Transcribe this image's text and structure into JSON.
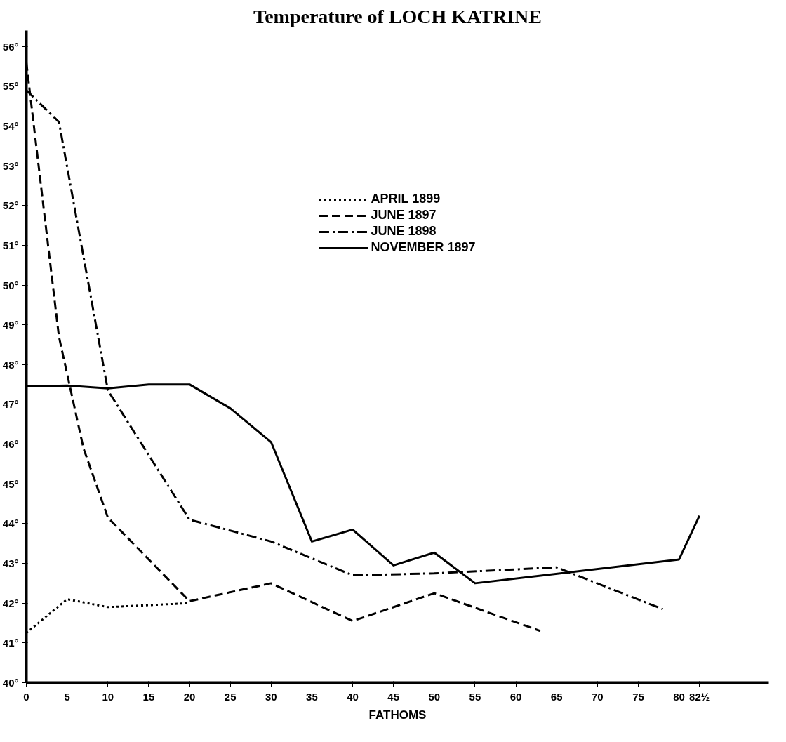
{
  "chart_data": {
    "type": "line",
    "title": "Temperature of LOCH KATRINE",
    "xlabel": "FATHOMS",
    "xlim": [
      0,
      91
    ],
    "ylim": [
      40,
      56.4
    ],
    "xticks": [
      0,
      5,
      10,
      15,
      20,
      25,
      30,
      35,
      40,
      45,
      50,
      55,
      60,
      65,
      70,
      75,
      80,
      {
        "value": 82.5,
        "label": "82½"
      }
    ],
    "yticks": [
      {
        "value": 40,
        "label": "40°"
      },
      {
        "value": 41,
        "label": "41°"
      },
      {
        "value": 42,
        "label": "42°"
      },
      {
        "value": 43,
        "label": "43°"
      },
      {
        "value": 44,
        "label": "44°"
      },
      {
        "value": 45,
        "label": "45°"
      },
      {
        "value": 46,
        "label": "46°"
      },
      {
        "value": 47,
        "label": "47°"
      },
      {
        "value": 48,
        "label": "48°"
      },
      {
        "value": 49,
        "label": "49°"
      },
      {
        "value": 50,
        "label": "50°"
      },
      {
        "value": 51,
        "label": "51°"
      },
      {
        "value": 52,
        "label": "52°"
      },
      {
        "value": 53,
        "label": "53°"
      },
      {
        "value": 54,
        "label": "54°"
      },
      {
        "value": 55,
        "label": "55°"
      },
      {
        "value": 56,
        "label": "56°"
      }
    ],
    "grid": false,
    "legend": "top",
    "marker": "none",
    "series": [
      {
        "name": "APRIL 1899",
        "color": "#000000",
        "line_style": "dotted",
        "x": [
          0,
          5,
          10,
          15,
          20
        ],
        "values": [
          41.25,
          42.1,
          41.9,
          41.95,
          42.0
        ]
      },
      {
        "name": "JUNE 1897",
        "color": "#000000",
        "line_style": "dashed",
        "x": [
          0,
          4,
          7,
          10,
          20,
          30,
          40,
          50,
          63
        ],
        "values": [
          55.6,
          48.7,
          45.9,
          44.15,
          42.05,
          42.5,
          41.55,
          42.25,
          41.3
        ]
      },
      {
        "name": "JUNE 1898",
        "color": "#000000",
        "line_style": "dashdot",
        "x": [
          0,
          4,
          10,
          20,
          30,
          40,
          50,
          65,
          78
        ],
        "values": [
          54.9,
          54.1,
          47.35,
          44.1,
          43.55,
          42.7,
          42.75,
          42.9,
          41.85
        ]
      },
      {
        "name": "NOVEMBER 1897",
        "color": "#000000",
        "line_style": "solid",
        "x": [
          0,
          5,
          10,
          15,
          20,
          25,
          30,
          35,
          40,
          45,
          50,
          55,
          80,
          82.5
        ],
        "values": [
          47.45,
          47.47,
          47.4,
          47.5,
          47.5,
          46.9,
          46.05,
          43.55,
          43.85,
          42.95,
          43.27,
          42.5,
          43.1,
          44.2
        ]
      }
    ]
  }
}
